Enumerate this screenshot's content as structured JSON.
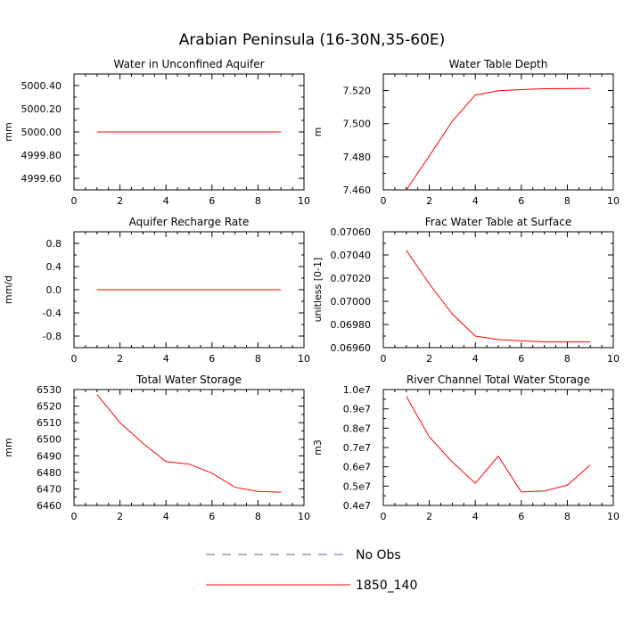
{
  "figure": {
    "title": "Arabian Peninsula (16-30N,35-60E)"
  },
  "legend": {
    "items": [
      {
        "label": "No Obs",
        "color": "#5a5ab4",
        "dash": "dashed"
      },
      {
        "label": "1850_140",
        "color": "#ff0000",
        "dash": "solid"
      }
    ]
  },
  "chart_data": [
    {
      "type": "line",
      "title": "Water in Unconfined Aquifer",
      "xlabel": "",
      "ylabel": "mm",
      "xlim": [
        0,
        10
      ],
      "ylim": [
        4999.5,
        5000.5
      ],
      "xticks": [
        0,
        2,
        4,
        6,
        8,
        10
      ],
      "xtick_labels": [
        "0",
        "2",
        "4",
        "6",
        "8",
        "10"
      ],
      "yticks": [
        4999.6,
        4999.8,
        5000.0,
        5000.2,
        5000.4
      ],
      "ytick_labels": [
        "4999.60",
        "4999.80",
        "5000.00",
        "5000.20",
        "5000.40"
      ],
      "series": [
        {
          "name": "1850_140",
          "color": "#ff0000",
          "x": [
            1,
            2,
            3,
            4,
            5,
            6,
            7,
            8,
            9
          ],
          "values": [
            5000,
            5000,
            5000,
            5000,
            5000,
            5000,
            5000,
            5000,
            5000
          ]
        }
      ]
    },
    {
      "type": "line",
      "title": "Water Table Depth",
      "xlabel": "",
      "ylabel": "m",
      "xlim": [
        0,
        10
      ],
      "ylim": [
        7.46,
        7.53
      ],
      "xticks": [
        0,
        2,
        4,
        6,
        8,
        10
      ],
      "xtick_labels": [
        "0",
        "2",
        "4",
        "6",
        "8",
        "10"
      ],
      "yticks": [
        7.46,
        7.48,
        7.5,
        7.52
      ],
      "ytick_labels": [
        "7.460",
        "7.480",
        "7.500",
        "7.520"
      ],
      "series": [
        {
          "name": "1850_140",
          "color": "#ff0000",
          "x": [
            1,
            2,
            3,
            4,
            5,
            6,
            7,
            8,
            9
          ],
          "values": [
            7.46,
            7.4805,
            7.5015,
            7.5173,
            7.5199,
            7.5206,
            7.5211,
            7.5212,
            7.5213
          ]
        }
      ]
    },
    {
      "type": "line",
      "title": "Aquifer Recharge Rate",
      "xlabel": "",
      "ylabel": "mm/d",
      "xlim": [
        0,
        10
      ],
      "ylim": [
        -1.0,
        1.0
      ],
      "xticks": [
        0,
        2,
        4,
        6,
        8,
        10
      ],
      "xtick_labels": [
        "0",
        "2",
        "4",
        "6",
        "8",
        "10"
      ],
      "yticks": [
        -0.8,
        -0.4,
        0.0,
        0.4,
        0.8
      ],
      "ytick_labels": [
        "-0.8",
        "-0.4",
        "0.0",
        "0.4",
        "0.8"
      ],
      "series": [
        {
          "name": "1850_140",
          "color": "#ff0000",
          "x": [
            1,
            2,
            3,
            4,
            5,
            6,
            7,
            8,
            9
          ],
          "values": [
            0,
            0,
            0,
            0,
            0,
            0,
            0,
            0,
            0
          ]
        }
      ]
    },
    {
      "type": "line",
      "title": "Frac Water Table at Surface",
      "xlabel": "",
      "ylabel": "unitless [0-1]",
      "xlim": [
        0,
        10
      ],
      "ylim": [
        0.0696,
        0.0706
      ],
      "xticks": [
        0,
        2,
        4,
        6,
        8,
        10
      ],
      "xtick_labels": [
        "0",
        "2",
        "4",
        "6",
        "8",
        "10"
      ],
      "yticks": [
        0.0696,
        0.0698,
        0.07,
        0.0702,
        0.0704,
        0.0706
      ],
      "ytick_labels": [
        "0.06960",
        "0.06980",
        "0.07000",
        "0.07020",
        "0.07040",
        "0.07060"
      ],
      "series": [
        {
          "name": "1850_140",
          "color": "#ff0000",
          "x": [
            1,
            2,
            3,
            4,
            5,
            6,
            7,
            8,
            9
          ],
          "values": [
            0.07044,
            0.07015,
            0.06989,
            0.0697,
            0.06967,
            0.06966,
            0.06965,
            0.06965,
            0.06965
          ]
        }
      ]
    },
    {
      "type": "line",
      "title": "Total Water Storage",
      "xlabel": "",
      "ylabel": "mm",
      "xlim": [
        0,
        10
      ],
      "ylim": [
        6460,
        6530
      ],
      "xticks": [
        0,
        2,
        4,
        6,
        8,
        10
      ],
      "xtick_labels": [
        "0",
        "2",
        "4",
        "6",
        "8",
        "10"
      ],
      "yticks": [
        6460,
        6470,
        6480,
        6490,
        6500,
        6510,
        6520,
        6530
      ],
      "ytick_labels": [
        "6460",
        "6470",
        "6480",
        "6490",
        "6500",
        "6510",
        "6520",
        "6530"
      ],
      "series": [
        {
          "name": "1850_140",
          "color": "#ff0000",
          "x": [
            1,
            2,
            3,
            4,
            5,
            6,
            7,
            8,
            9
          ],
          "values": [
            6527,
            6510,
            6497.5,
            6486.5,
            6485,
            6479.5,
            6471,
            6468.5,
            6468
          ]
        }
      ]
    },
    {
      "type": "line",
      "title": "River Channel Total Water Storage",
      "xlabel": "",
      "ylabel": "m3",
      "xlim": [
        0,
        10
      ],
      "ylim": [
        0.4,
        1.0
      ],
      "xticks": [
        0,
        2,
        4,
        6,
        8,
        10
      ],
      "xtick_labels": [
        "0",
        "2",
        "4",
        "6",
        "8",
        "10"
      ],
      "yticks": [
        0.4,
        0.5,
        0.6,
        0.7,
        0.8,
        0.9,
        1.0
      ],
      "ytick_labels": [
        "0.4e7",
        "0.5e7",
        "0.6e7",
        "0.7e7",
        "0.8e7",
        "0.9e7",
        "1.0e7"
      ],
      "series": [
        {
          "name": "1850_140",
          "color": "#ff0000",
          "x": [
            1,
            2,
            3,
            4,
            5,
            6,
            7,
            8,
            9
          ],
          "values": [
            0.965,
            0.755,
            0.625,
            0.515,
            0.655,
            0.47,
            0.475,
            0.505,
            0.61
          ]
        }
      ]
    }
  ]
}
